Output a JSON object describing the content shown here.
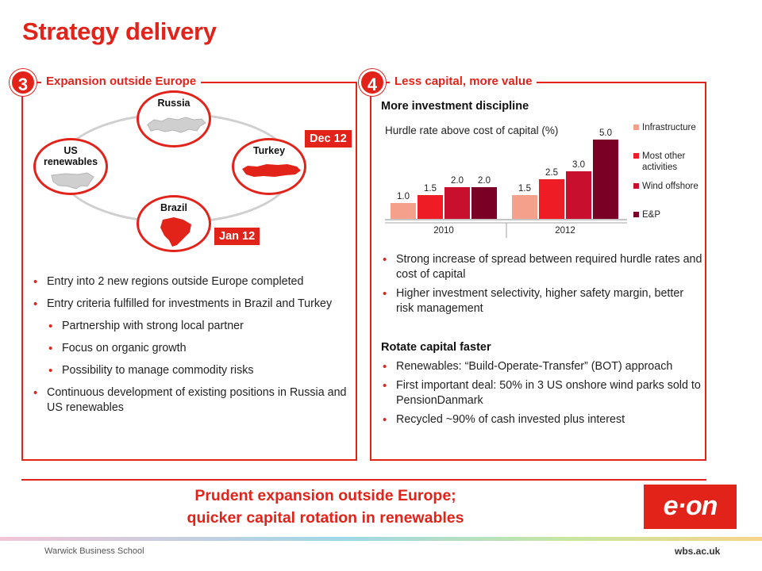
{
  "title": "Strategy delivery",
  "left_panel": {
    "number": "3",
    "heading": "Expansion outside Europe",
    "regions": {
      "russia": "Russia",
      "us": "US renewables",
      "turkey": "Turkey",
      "brazil": "Brazil"
    },
    "dates": {
      "turkey": "Dec 12",
      "brazil": "Jan 12"
    },
    "bullets": [
      "Entry into 2 new regions outside Europe completed",
      "Entry criteria fulfilled for investments in Brazil and Turkey",
      "Partnership with strong local partner",
      "Focus on organic growth",
      "Possibility to manage commodity risks",
      "Continuous development of existing positions in Russia and US renewables"
    ]
  },
  "right_panel": {
    "number": "4",
    "heading": "Less capital, more value",
    "subhead1": "More investment discipline",
    "subhead2": "Rotate capital faster",
    "bullets1": [
      "Strong increase of spread between required hurdle rates and cost of capital",
      "Higher investment selectivity, higher safety margin, better risk management"
    ],
    "bullets2": [
      "Renewables: “Build-Operate-Transfer” (BOT) approach",
      "First important deal: 50% in 3 US onshore wind parks sold to PensionDanmark",
      "Recycled ~90% of cash invested plus interest"
    ]
  },
  "chart_data": {
    "type": "bar",
    "title": "Hurdle rate above cost of capital (%)",
    "categories": [
      "2010",
      "2012"
    ],
    "series": [
      {
        "name": "Infrastructure",
        "values": [
          1.0,
          1.5
        ],
        "color": "#f4a08a"
      },
      {
        "name": "Most other activities",
        "values": [
          1.5,
          2.5
        ],
        "color": "#ee1c25"
      },
      {
        "name": "Wind offshore",
        "values": [
          2.0,
          3.0
        ],
        "color": "#c8102e"
      },
      {
        "name": "E&P",
        "values": [
          2.0,
          5.0
        ],
        "color": "#7a0026"
      }
    ],
    "value_labels": [
      [
        "1.0",
        "1.5",
        "2.0",
        "2.0"
      ],
      [
        "1.5",
        "2.5",
        "3.0",
        "5.0"
      ]
    ],
    "ylim": [
      0,
      5.5
    ],
    "legend_position": "right",
    "grid": false
  },
  "tagline": {
    "line1": "Prudent expansion outside Europe;",
    "line2": "quicker capital rotation in renewables"
  },
  "logo_text": "e·on",
  "footer": {
    "left": "Warwick Business School",
    "right": "wbs.ac.uk"
  }
}
